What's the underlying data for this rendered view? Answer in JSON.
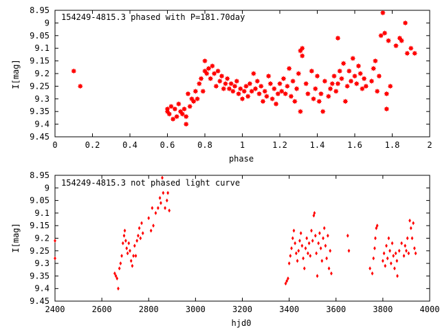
{
  "window": {
    "width": 640,
    "height": 480
  },
  "colors": {
    "points": "#ff0000",
    "axes": "#000000",
    "background": "#ffffff"
  },
  "chart_data": [
    {
      "type": "scatter",
      "title": "154249-4815.3 phased with P=181.70day",
      "xlabel": "phase",
      "ylabel": "I[mag]",
      "xlim": [
        0,
        2
      ],
      "ylim": [
        8.95,
        9.45
      ],
      "y_inverted": true,
      "grid": false,
      "legend": "none",
      "marker": "star",
      "xticks": [
        0,
        0.2,
        0.4,
        0.6,
        0.8,
        1,
        1.2,
        1.4,
        1.6,
        1.8,
        2
      ],
      "xtick_labels": [
        "0",
        "0.2",
        "0.4",
        "0.6",
        "0.8",
        "1",
        "1.2",
        "1.4",
        "1.6",
        "1.8",
        "2"
      ],
      "yticks": [
        8.95,
        9,
        9.05,
        9.1,
        9.15,
        9.2,
        9.25,
        9.3,
        9.35,
        9.4,
        9.45
      ],
      "ytick_labels": [
        "8.95",
        "9",
        "9.05",
        "9.1",
        "9.15",
        "9.2",
        "9.25",
        "9.3",
        "9.35",
        "9.4",
        "9.45"
      ],
      "series": [
        {
          "points": [
            [
              0.1,
              9.19
            ],
            [
              0.135,
              9.25
            ],
            [
              0.6,
              9.34
            ],
            [
              0.6,
              9.35
            ],
            [
              0.61,
              9.36
            ],
            [
              0.62,
              9.33
            ],
            [
              0.63,
              9.38
            ],
            [
              0.64,
              9.34
            ],
            [
              0.65,
              9.37
            ],
            [
              0.66,
              9.32
            ],
            [
              0.67,
              9.35
            ],
            [
              0.68,
              9.36
            ],
            [
              0.69,
              9.34
            ],
            [
              0.7,
              9.37
            ],
            [
              0.7,
              9.4
            ],
            [
              0.71,
              9.28
            ],
            [
              0.72,
              9.33
            ],
            [
              0.73,
              9.3
            ],
            [
              0.74,
              9.31
            ],
            [
              0.75,
              9.27
            ],
            [
              0.76,
              9.3
            ],
            [
              0.77,
              9.24
            ],
            [
              0.78,
              9.22
            ],
            [
              0.79,
              9.27
            ],
            [
              0.8,
              9.19
            ],
            [
              0.8,
              9.15
            ],
            [
              0.81,
              9.2
            ],
            [
              0.82,
              9.18
            ],
            [
              0.83,
              9.22
            ],
            [
              0.84,
              9.17
            ],
            [
              0.85,
              9.2
            ],
            [
              0.86,
              9.25
            ],
            [
              0.87,
              9.19
            ],
            [
              0.88,
              9.23
            ],
            [
              0.89,
              9.21
            ],
            [
              0.9,
              9.26
            ],
            [
              0.91,
              9.24
            ],
            [
              0.92,
              9.22
            ],
            [
              0.93,
              9.26
            ],
            [
              0.94,
              9.24
            ],
            [
              0.95,
              9.27
            ],
            [
              0.96,
              9.25
            ],
            [
              0.97,
              9.23
            ],
            [
              0.98,
              9.28
            ],
            [
              0.99,
              9.26
            ],
            [
              1.0,
              9.3
            ],
            [
              1.01,
              9.27
            ],
            [
              1.02,
              9.25
            ],
            [
              1.03,
              9.29
            ],
            [
              1.04,
              9.24
            ],
            [
              1.05,
              9.27
            ],
            [
              1.06,
              9.2
            ],
            [
              1.07,
              9.26
            ],
            [
              1.08,
              9.23
            ],
            [
              1.09,
              9.28
            ],
            [
              1.1,
              9.25
            ],
            [
              1.11,
              9.31
            ],
            [
              1.12,
              9.27
            ],
            [
              1.13,
              9.29
            ],
            [
              1.14,
              9.21
            ],
            [
              1.15,
              9.24
            ],
            [
              1.16,
              9.3
            ],
            [
              1.17,
              9.26
            ],
            [
              1.18,
              9.32
            ],
            [
              1.19,
              9.28
            ],
            [
              1.2,
              9.24
            ],
            [
              1.21,
              9.27
            ],
            [
              1.22,
              9.22
            ],
            [
              1.23,
              9.28
            ],
            [
              1.24,
              9.25
            ],
            [
              1.25,
              9.18
            ],
            [
              1.26,
              9.29
            ],
            [
              1.27,
              9.23
            ],
            [
              1.28,
              9.31
            ],
            [
              1.29,
              9.26
            ],
            [
              1.3,
              9.2
            ],
            [
              1.31,
              9.11
            ],
            [
              1.31,
              9.35
            ],
            [
              1.32,
              9.13
            ],
            [
              1.32,
              9.1
            ],
            [
              1.34,
              9.24
            ],
            [
              1.35,
              9.28
            ],
            [
              1.37,
              9.19
            ],
            [
              1.38,
              9.3
            ],
            [
              1.39,
              9.26
            ],
            [
              1.4,
              9.21
            ],
            [
              1.41,
              9.31
            ],
            [
              1.42,
              9.28
            ],
            [
              1.43,
              9.35
            ],
            [
              1.44,
              9.23
            ],
            [
              1.46,
              9.29
            ],
            [
              1.47,
              9.26
            ],
            [
              1.48,
              9.24
            ],
            [
              1.49,
              9.21
            ],
            [
              1.5,
              9.27
            ],
            [
              1.51,
              9.24
            ],
            [
              1.51,
              9.06
            ],
            [
              1.52,
              9.19
            ],
            [
              1.53,
              9.22
            ],
            [
              1.54,
              9.16
            ],
            [
              1.55,
              9.31
            ],
            [
              1.56,
              9.25
            ],
            [
              1.57,
              9.19
            ],
            [
              1.58,
              9.23
            ],
            [
              1.59,
              9.14
            ],
            [
              1.6,
              9.21
            ],
            [
              1.61,
              9.24
            ],
            [
              1.62,
              9.17
            ],
            [
              1.63,
              9.2
            ],
            [
              1.64,
              9.26
            ],
            [
              1.65,
              9.22
            ],
            [
              1.66,
              9.25
            ],
            [
              1.69,
              9.23
            ],
            [
              1.7,
              9.18
            ],
            [
              1.71,
              9.15
            ],
            [
              1.72,
              9.27
            ],
            [
              1.73,
              9.21
            ],
            [
              1.74,
              9.05
            ],
            [
              1.75,
              8.96
            ],
            [
              1.76,
              9.04
            ],
            [
              1.77,
              9.28
            ],
            [
              1.77,
              9.34
            ],
            [
              1.78,
              9.07
            ],
            [
              1.79,
              9.25
            ],
            [
              1.82,
              9.09
            ],
            [
              1.84,
              9.06
            ],
            [
              1.85,
              9.07
            ],
            [
              1.87,
              9.0
            ],
            [
              1.88,
              9.12
            ],
            [
              1.9,
              9.1
            ],
            [
              1.92,
              9.12
            ]
          ]
        }
      ]
    },
    {
      "type": "scatter",
      "title": "154249-4815.3 not phased light curve",
      "xlabel": "hjd0",
      "ylabel": "I[mag]",
      "xlim": [
        2400,
        4000
      ],
      "ylim": [
        8.95,
        9.45
      ],
      "y_inverted": true,
      "grid": false,
      "legend": "none",
      "marker": "diamond",
      "xticks": [
        2400,
        2600,
        2800,
        3000,
        3200,
        3400,
        3600,
        3800,
        4000
      ],
      "xtick_labels": [
        "2400",
        "2600",
        "2800",
        "3000",
        "3200",
        "3400",
        "3600",
        "3800",
        "4000"
      ],
      "yticks": [
        8.95,
        9,
        9.05,
        9.1,
        9.15,
        9.2,
        9.25,
        9.3,
        9.35,
        9.4,
        9.45
      ],
      "ytick_labels": [
        "8.95",
        "9",
        "9.05",
        "9.1",
        "9.15",
        "9.2",
        "9.25",
        "9.3",
        "9.35",
        "9.4",
        "9.45"
      ],
      "series": [
        {
          "points": [
            [
              2400,
              9.21
            ],
            [
              2400,
              9.28
            ],
            [
              2655,
              9.34
            ],
            [
              2660,
              9.35
            ],
            [
              2665,
              9.36
            ],
            [
              2670,
              9.4
            ],
            [
              2675,
              9.32
            ],
            [
              2680,
              9.3
            ],
            [
              2685,
              9.27
            ],
            [
              2690,
              9.22
            ],
            [
              2695,
              9.19
            ],
            [
              2698,
              9.17
            ],
            [
              2702,
              9.21
            ],
            [
              2706,
              9.24
            ],
            [
              2710,
              9.26
            ],
            [
              2715,
              9.22
            ],
            [
              2720,
              9.25
            ],
            [
              2725,
              9.29
            ],
            [
              2730,
              9.31
            ],
            [
              2735,
              9.27
            ],
            [
              2740,
              9.23
            ],
            [
              2745,
              9.27
            ],
            [
              2750,
              9.21
            ],
            [
              2755,
              9.19
            ],
            [
              2760,
              9.16
            ],
            [
              2765,
              9.2
            ],
            [
              2770,
              9.14
            ],
            [
              2775,
              9.18
            ],
            [
              2800,
              9.12
            ],
            [
              2810,
              9.17
            ],
            [
              2815,
              9.08
            ],
            [
              2820,
              9.15
            ],
            [
              2830,
              9.1
            ],
            [
              2840,
              9.08
            ],
            [
              2848,
              9.04
            ],
            [
              2852,
              9.06
            ],
            [
              2858,
              8.96
            ],
            [
              2862,
              9.02
            ],
            [
              2870,
              9.08
            ],
            [
              2878,
              9.05
            ],
            [
              2882,
              9.02
            ],
            [
              2888,
              9.09
            ],
            [
              3385,
              9.38
            ],
            [
              3390,
              9.37
            ],
            [
              3395,
              9.36
            ],
            [
              3400,
              9.3
            ],
            [
              3405,
              9.27
            ],
            [
              3410,
              9.24
            ],
            [
              3415,
              9.2
            ],
            [
              3420,
              9.17
            ],
            [
              3425,
              9.22
            ],
            [
              3430,
              9.26
            ],
            [
              3435,
              9.29
            ],
            [
              3440,
              9.25
            ],
            [
              3445,
              9.21
            ],
            [
              3450,
              9.18
            ],
            [
              3455,
              9.23
            ],
            [
              3460,
              9.28
            ],
            [
              3465,
              9.32
            ],
            [
              3470,
              9.24
            ],
            [
              3475,
              9.2
            ],
            [
              3480,
              9.26
            ],
            [
              3485,
              9.22
            ],
            [
              3490,
              9.27
            ],
            [
              3495,
              9.17
            ],
            [
              3500,
              9.21
            ],
            [
              3505,
              9.11
            ],
            [
              3508,
              9.1
            ],
            [
              3512,
              9.19
            ],
            [
              3516,
              9.26
            ],
            [
              3520,
              9.35
            ],
            [
              3525,
              9.22
            ],
            [
              3530,
              9.18
            ],
            [
              3535,
              9.24
            ],
            [
              3540,
              9.29
            ],
            [
              3545,
              9.2
            ],
            [
              3550,
              9.16
            ],
            [
              3555,
              9.23
            ],
            [
              3560,
              9.28
            ],
            [
              3565,
              9.19
            ],
            [
              3570,
              9.32
            ],
            [
              3575,
              9.25
            ],
            [
              3580,
              9.34
            ],
            [
              3650,
              9.19
            ],
            [
              3655,
              9.25
            ],
            [
              3745,
              9.32
            ],
            [
              3755,
              9.34
            ],
            [
              3760,
              9.28
            ],
            [
              3765,
              9.24
            ],
            [
              3768,
              9.2
            ],
            [
              3772,
              9.16
            ],
            [
              3776,
              9.15
            ],
            [
              3800,
              9.29
            ],
            [
              3805,
              9.26
            ],
            [
              3810,
              9.31
            ],
            [
              3815,
              9.23
            ],
            [
              3820,
              9.28
            ],
            [
              3825,
              9.2
            ],
            [
              3830,
              9.25
            ],
            [
              3835,
              9.3
            ],
            [
              3840,
              9.22
            ],
            [
              3845,
              9.27
            ],
            [
              3850,
              9.32
            ],
            [
              3855,
              9.26
            ],
            [
              3860,
              9.29
            ],
            [
              3862,
              9.35
            ],
            [
              3870,
              9.25
            ],
            [
              3880,
              9.22
            ],
            [
              3890,
              9.27
            ],
            [
              3895,
              9.23
            ],
            [
              3900,
              9.25
            ],
            [
              3905,
              9.2
            ],
            [
              3910,
              9.26
            ],
            [
              3915,
              9.13
            ],
            [
              3920,
              9.16
            ],
            [
              3925,
              9.2
            ],
            [
              3930,
              9.14
            ],
            [
              3935,
              9.24
            ],
            [
              3940,
              9.26
            ]
          ]
        }
      ]
    }
  ]
}
